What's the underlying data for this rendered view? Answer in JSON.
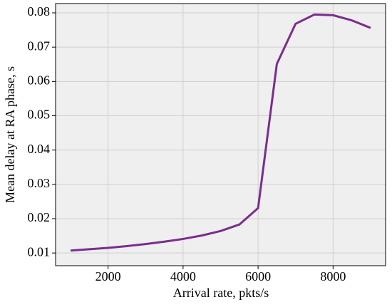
{
  "chart_data": {
    "type": "line",
    "xlabel": "Arrival rate, pkts/s",
    "ylabel": "Mean delay at RA phase, s",
    "x": [
      1000,
      1500,
      2000,
      2500,
      3000,
      3500,
      4000,
      4500,
      5000,
      5500,
      6000,
      6500,
      7000,
      7500,
      8000,
      8500,
      9000
    ],
    "series": [
      {
        "color": "#7b2d8e",
        "values": [
          0.0107,
          0.0111,
          0.0115,
          0.012,
          0.0126,
          0.0133,
          0.0141,
          0.0151,
          0.0164,
          0.0183,
          0.0231,
          0.0651,
          0.0768,
          0.0795,
          0.0793,
          0.0778,
          0.0756
        ]
      }
    ],
    "xlim": [
      600,
      9400
    ],
    "xticks": [
      2000,
      4000,
      6000,
      8000
    ],
    "ylim": [
      0.0063,
      0.0827
    ],
    "yticks": [
      0.01,
      0.02,
      0.03,
      0.04,
      0.05,
      0.06,
      0.07,
      0.08
    ],
    "grid": true
  }
}
